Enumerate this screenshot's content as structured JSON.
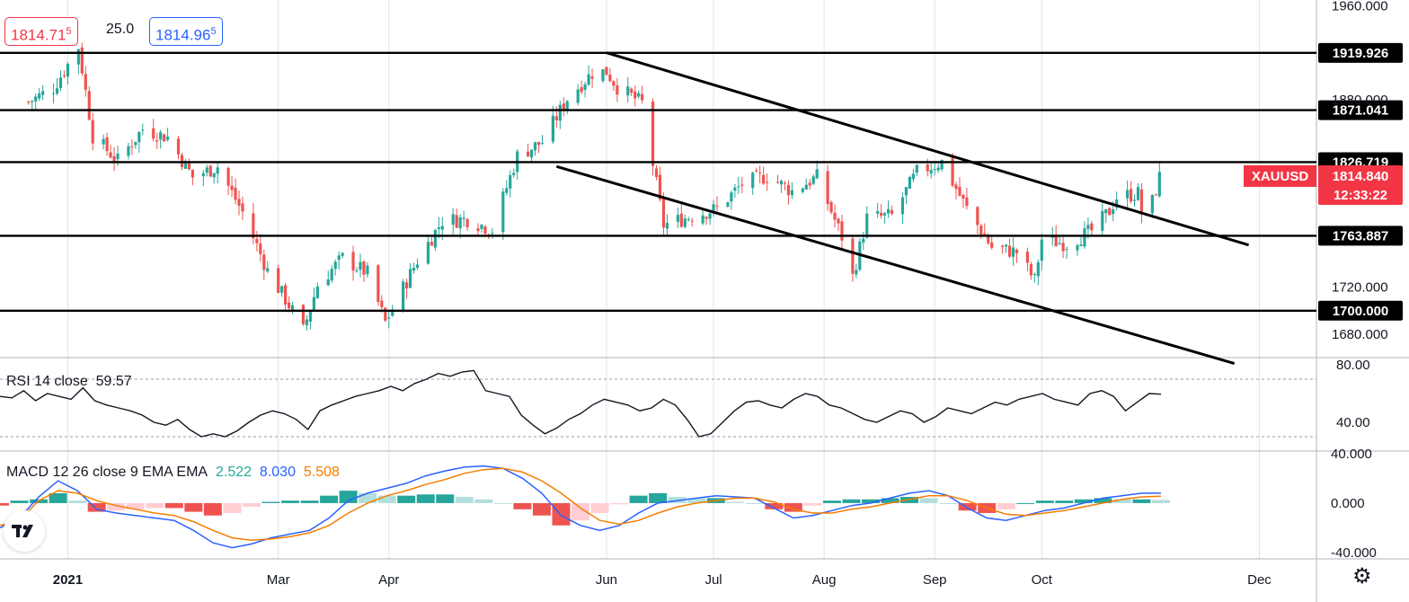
{
  "header": {
    "sell_price": "1814.71",
    "sell_price_sup": "5",
    "spread": "25.0",
    "buy_price": "1814.96",
    "buy_price_sup": "5"
  },
  "colors": {
    "up": "#26a69a",
    "down": "#ef5350",
    "rsi_line": "#131722",
    "macd_line": "#2962ff",
    "signal_line": "#f57c00",
    "hist_up_strong": "#26a69a",
    "hist_up_weak": "#b2dfdb",
    "hist_down_strong": "#ef5350",
    "hist_down_weak": "#ffcdd2",
    "price_badge": "#f23645",
    "level_badge": "#000000"
  },
  "rsi": {
    "label": "RSI 14 close",
    "value": "59.57"
  },
  "macd": {
    "label": "MACD 12 26 close 9 EMA EMA",
    "hist": "2.522",
    "macd": "8.030",
    "signal": "5.508"
  },
  "chart_data": [
    {
      "type": "candlestick",
      "symbol": "XAUUSD",
      "last_price": "1814.840",
      "countdown": "12:33:22",
      "x_labels": [
        "2021",
        "Mar",
        "Apr",
        "Jun",
        "Jul",
        "Aug",
        "Sep",
        "Oct",
        "Dec"
      ],
      "y_ticks": [
        "1960.000",
        "1880.000",
        "1720.000",
        "1680.000"
      ],
      "ylim": [
        1660,
        1965
      ],
      "horizontal_levels": [
        "1919.926",
        "1871.041",
        "1826.719",
        "1763.887",
        "1700.000"
      ],
      "trendlines": [
        {
          "from": [
            "2021-06-01",
            1920
          ],
          "to": [
            "2021-11-28",
            1756
          ]
        },
        {
          "from": [
            "2021-05-18",
            1823
          ],
          "to": [
            "2021-11-24",
            1655
          ]
        }
      ],
      "closes": [
        [
          "2020-12-21",
          1878
        ],
        [
          "2020-12-28",
          1890
        ],
        [
          "2021-01-04",
          1925
        ],
        [
          "2021-01-08",
          1849
        ],
        [
          "2021-01-15",
          1828
        ],
        [
          "2021-01-22",
          1855
        ],
        [
          "2021-01-29",
          1848
        ],
        [
          "2021-02-05",
          1814
        ],
        [
          "2021-02-12",
          1823
        ],
        [
          "2021-02-19",
          1784
        ],
        [
          "2021-02-26",
          1734
        ],
        [
          "2021-03-05",
          1700
        ],
        [
          "2021-03-08",
          1683
        ],
        [
          "2021-03-12",
          1722
        ],
        [
          "2021-03-19",
          1745
        ],
        [
          "2021-03-26",
          1732
        ],
        [
          "2021-03-31",
          1690
        ],
        [
          "2021-04-09",
          1743
        ],
        [
          "2021-04-16",
          1777
        ],
        [
          "2021-04-23",
          1778
        ],
        [
          "2021-04-30",
          1769
        ],
        [
          "2021-05-07",
          1832
        ],
        [
          "2021-05-14",
          1844
        ],
        [
          "2021-05-21",
          1881
        ],
        [
          "2021-05-28",
          1903
        ],
        [
          "2021-06-01",
          1904
        ],
        [
          "2021-06-04",
          1891
        ],
        [
          "2021-06-11",
          1877
        ],
        [
          "2021-06-17",
          1773
        ],
        [
          "2021-06-25",
          1781
        ],
        [
          "2021-07-02",
          1787
        ],
        [
          "2021-07-09",
          1808
        ],
        [
          "2021-07-16",
          1815
        ],
        [
          "2021-07-23",
          1802
        ],
        [
          "2021-07-30",
          1814
        ],
        [
          "2021-08-06",
          1763
        ],
        [
          "2021-08-09",
          1729
        ],
        [
          "2021-08-13",
          1779
        ],
        [
          "2021-08-20",
          1781
        ],
        [
          "2021-08-27",
          1818
        ],
        [
          "2021-09-03",
          1827
        ],
        [
          "2021-09-10",
          1787
        ],
        [
          "2021-09-17",
          1754
        ],
        [
          "2021-09-24",
          1750
        ],
        [
          "2021-09-29",
          1726
        ],
        [
          "2021-10-01",
          1761
        ],
        [
          "2021-10-08",
          1757
        ],
        [
          "2021-10-15",
          1768
        ],
        [
          "2021-10-20",
          1785
        ],
        [
          "2021-10-22",
          1797
        ],
        [
          "2021-10-28",
          1800
        ],
        [
          "2021-10-29",
          1783
        ],
        [
          "2021-11-01",
          1793
        ],
        [
          "2021-11-03",
          1814
        ]
      ]
    },
    {
      "type": "line",
      "title": "RSI 14 close",
      "y_ticks": [
        "80.00",
        "40.00"
      ],
      "ylim": [
        20,
        85
      ],
      "guides": [
        70,
        30
      ],
      "values": [
        58,
        57,
        62,
        55,
        60,
        58,
        56,
        64,
        55,
        52,
        50,
        48,
        45,
        40,
        38,
        42,
        35,
        30,
        32,
        30,
        34,
        40,
        45,
        48,
        46,
        42,
        35,
        48,
        52,
        55,
        58,
        60,
        62,
        65,
        62,
        67,
        70,
        74,
        72,
        75,
        76,
        62,
        60,
        58,
        45,
        38,
        32,
        36,
        42,
        46,
        52,
        56,
        54,
        52,
        48,
        50,
        56,
        52,
        42,
        30,
        32,
        40,
        48,
        54,
        55,
        52,
        50,
        56,
        60,
        58,
        52,
        50,
        46,
        42,
        40,
        44,
        48,
        46,
        40,
        44,
        50,
        48,
        46,
        50,
        54,
        52,
        56,
        58,
        60,
        56,
        54,
        52,
        60,
        62,
        58,
        48,
        54,
        60,
        59.57
      ]
    },
    {
      "type": "histogram+line",
      "title": "MACD 12 26 close 9 EMA EMA",
      "y_ticks": [
        "40.000",
        "0.000",
        "-40.000"
      ],
      "ylim": [
        -45,
        42
      ],
      "macd": [
        -20,
        -12,
        5,
        18,
        10,
        -5,
        -8,
        -10,
        -12,
        -14,
        -22,
        -32,
        -36,
        -33,
        -28,
        -25,
        -22,
        -12,
        2,
        8,
        12,
        16,
        22,
        26,
        29,
        30,
        28,
        20,
        8,
        -10,
        -18,
        -22,
        -18,
        -8,
        0,
        2,
        4,
        6,
        5,
        4,
        -4,
        -12,
        -10,
        -6,
        -2,
        0,
        4,
        8,
        10,
        6,
        -4,
        -12,
        -14,
        -10,
        -6,
        -4,
        0,
        4,
        6,
        8,
        8.03
      ],
      "signal": [
        -18,
        -14,
        2,
        10,
        8,
        2,
        -2,
        -5,
        -8,
        -10,
        -15,
        -22,
        -28,
        -30,
        -29,
        -27,
        -24,
        -18,
        -8,
        0,
        6,
        10,
        15,
        19,
        24,
        27,
        28,
        25,
        18,
        8,
        -4,
        -14,
        -17,
        -14,
        -8,
        -3,
        0,
        2,
        4,
        4,
        1,
        -5,
        -8,
        -8,
        -5,
        -3,
        0,
        3,
        6,
        6,
        2,
        -4,
        -9,
        -10,
        -8,
        -6,
        -3,
        0,
        3,
        5,
        5.508
      ],
      "histogram": [
        -2,
        2,
        3,
        8,
        2,
        -7,
        -6,
        -5,
        -4,
        -4,
        -7,
        -10,
        -8,
        -3,
        1,
        2,
        2,
        6,
        10,
        8,
        6,
        6,
        7,
        7,
        5,
        3,
        0,
        -5,
        -10,
        -18,
        -14,
        -8,
        -1,
        6,
        8,
        5,
        4,
        4,
        1,
        0,
        -5,
        -7,
        -2,
        2,
        3,
        3,
        4,
        5,
        4,
        0,
        -6,
        -8,
        -5,
        0,
        2,
        2,
        3,
        4,
        3,
        3,
        2.522
      ]
    }
  ]
}
